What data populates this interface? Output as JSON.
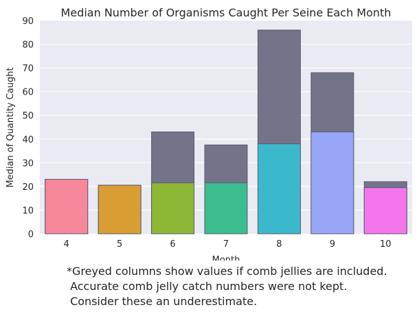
{
  "chart_data": {
    "type": "bar",
    "title": "Median Number of Organisms Caught Per Seine Each Month",
    "xlabel": "Month",
    "ylabel": "Median of Quantity Caught",
    "categories": [
      "4",
      "5",
      "6",
      "7",
      "8",
      "9",
      "10"
    ],
    "ylim": [
      0,
      90
    ],
    "yticks": [
      0,
      10,
      20,
      30,
      40,
      50,
      60,
      70,
      80,
      90
    ],
    "grid": true,
    "series": [
      {
        "values": [
          23,
          20.5,
          43,
          37.5,
          86,
          68,
          22
        ],
        "color": "#737389"
      },
      {
        "values": [
          23,
          20.5,
          21.5,
          21.5,
          38,
          43,
          19.5
        ],
        "colors": [
          "#f7879b",
          "#d89e34",
          "#8db835",
          "#3bbd90",
          "#3cb8cc",
          "#97a6f6",
          "#f476ec"
        ]
      }
    ]
  },
  "footnote": {
    "lines": [
      "*Greyed columns show values if comb jellies are included.",
      " Accurate comb jelly catch numbers were not kept.",
      " Consider these an underestimate."
    ]
  }
}
